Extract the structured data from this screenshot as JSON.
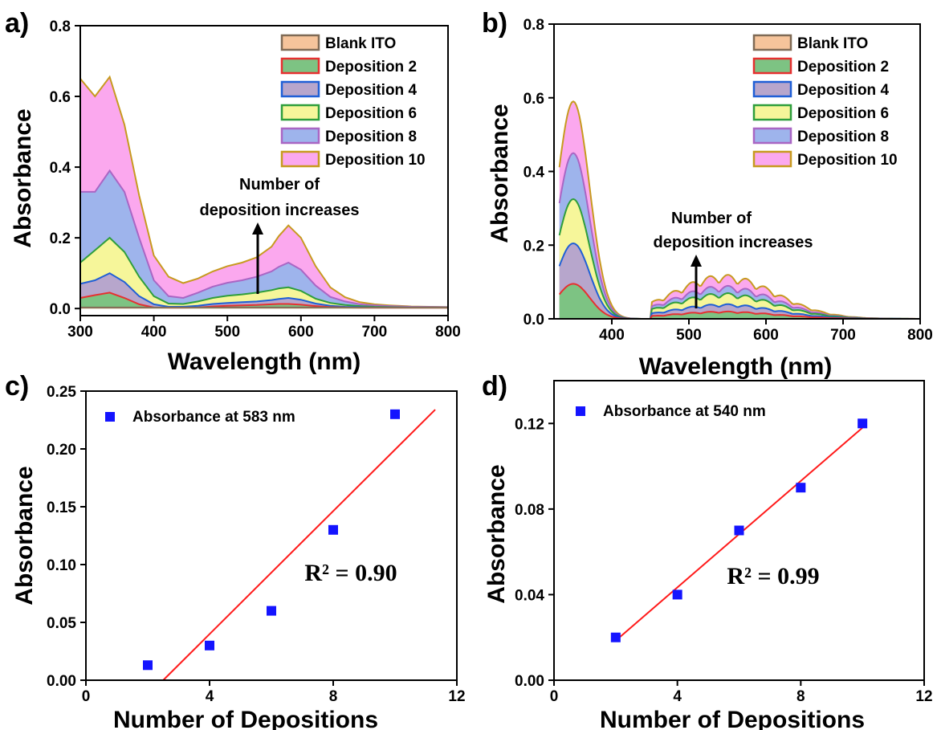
{
  "panels": [
    {
      "letter": "a)"
    },
    {
      "letter": "b)"
    },
    {
      "letter": "c)"
    },
    {
      "letter": "d)"
    }
  ],
  "colors": {
    "blank_fill": "#f6c49b",
    "blank_line": "#7f6a55",
    "dep2_fill": "#7dc383",
    "dep2_line": "#e63030",
    "dep4_fill": "#b7a6cc",
    "dep4_line": "#1f5fd6",
    "dep6_fill": "#f6f69a",
    "dep6_line": "#2e9e3c",
    "dep8_fill": "#9eb4ec",
    "dep8_line": "#a966c4",
    "dep10_fill": "#fba8ee",
    "dep10_line": "#c79a1f",
    "scatter": "#1414ff",
    "fit": "#ff1a1a"
  },
  "chart_data": [
    {
      "panel": "a)",
      "type": "area",
      "xlabel": "Wavelength (nm)",
      "ylabel": "Absorbance",
      "xlim": [
        300,
        800
      ],
      "ylim": [
        -0.02,
        0.8
      ],
      "xticks": [
        300,
        400,
        500,
        600,
        700,
        800
      ],
      "yticks": [
        0.0,
        0.2,
        0.4,
        0.6,
        0.8
      ],
      "ytick_labels": [
        "0.0",
        "0.2",
        "0.4",
        "0.6",
        "0.8"
      ],
      "legend_position": "top-right",
      "annotation": [
        "Number of",
        "deposition increases"
      ],
      "x": [
        300,
        320,
        340,
        360,
        380,
        400,
        420,
        440,
        460,
        480,
        500,
        520,
        540,
        560,
        570,
        583,
        600,
        620,
        640,
        660,
        680,
        700,
        720,
        750,
        800
      ],
      "series": [
        {
          "name": "Blank ITO",
          "values": [
            0.003,
            0.003,
            0.003,
            0.003,
            0.003,
            0.003,
            0.003,
            0.003,
            0.003,
            0.003,
            0.003,
            0.003,
            0.003,
            0.003,
            0.003,
            0.003,
            0.003,
            0.003,
            0.003,
            0.003,
            0.003,
            0.003,
            0.003,
            0.003,
            0.003
          ]
        },
        {
          "name": "Deposition 2",
          "values": [
            0.03,
            0.038,
            0.045,
            0.03,
            0.012,
            0.003,
            0.002,
            0.002,
            0.003,
            0.006,
            0.008,
            0.009,
            0.01,
            0.012,
            0.013,
            0.013,
            0.011,
            0.007,
            0.004,
            0.003,
            0.002,
            0.002,
            0.002,
            0.002,
            0.002
          ]
        },
        {
          "name": "Deposition 4",
          "values": [
            0.07,
            0.08,
            0.1,
            0.075,
            0.035,
            0.012,
            0.005,
            0.005,
            0.008,
            0.013,
            0.016,
            0.018,
            0.02,
            0.024,
            0.027,
            0.03,
            0.025,
            0.014,
            0.008,
            0.005,
            0.004,
            0.003,
            0.003,
            0.002,
            0.002
          ]
        },
        {
          "name": "Deposition 6",
          "values": [
            0.13,
            0.165,
            0.2,
            0.16,
            0.09,
            0.035,
            0.014,
            0.013,
            0.02,
            0.03,
            0.036,
            0.04,
            0.045,
            0.052,
            0.057,
            0.06,
            0.05,
            0.028,
            0.016,
            0.01,
            0.007,
            0.005,
            0.004,
            0.003,
            0.003
          ]
        },
        {
          "name": "Deposition 8",
          "values": [
            0.33,
            0.33,
            0.39,
            0.33,
            0.2,
            0.08,
            0.035,
            0.03,
            0.045,
            0.062,
            0.073,
            0.08,
            0.09,
            0.105,
            0.118,
            0.13,
            0.11,
            0.065,
            0.033,
            0.02,
            0.012,
            0.009,
            0.007,
            0.005,
            0.004
          ]
        },
        {
          "name": "Deposition 10",
          "values": [
            0.65,
            0.6,
            0.655,
            0.52,
            0.32,
            0.15,
            0.09,
            0.072,
            0.085,
            0.105,
            0.12,
            0.13,
            0.145,
            0.175,
            0.205,
            0.235,
            0.2,
            0.12,
            0.06,
            0.032,
            0.018,
            0.012,
            0.009,
            0.006,
            0.004
          ]
        }
      ]
    },
    {
      "panel": "b)",
      "type": "area",
      "xlabel": "Wavelength (nm)",
      "ylabel": "Absorbance",
      "xlim": [
        325,
        800
      ],
      "ylim": [
        0,
        0.8
      ],
      "xticks": [
        400,
        500,
        600,
        700,
        800
      ],
      "yticks": [
        0.0,
        0.2,
        0.4,
        0.6,
        0.8
      ],
      "ytick_labels": [
        "0.0",
        "0.2",
        "0.4",
        "0.6",
        "0.8"
      ],
      "legend_position": "top-right",
      "annotation": [
        "Number of",
        "deposition increases"
      ],
      "series": [
        {
          "name": "Blank ITO",
          "values": []
        },
        {
          "name": "Deposition 2",
          "peak1": 0.095,
          "peak2": 0.02
        },
        {
          "name": "Deposition 4",
          "peak1": 0.205,
          "peak2": 0.04
        },
        {
          "name": "Deposition 6",
          "peak1": 0.325,
          "peak2": 0.07
        },
        {
          "name": "Deposition 8",
          "peak1": 0.45,
          "peak2": 0.09
        },
        {
          "name": "Deposition 10",
          "peak1": 0.59,
          "peak2": 0.12
        }
      ]
    },
    {
      "panel": "c)",
      "type": "scatter",
      "xlabel": "Number of Depositions",
      "ylabel": "Absorbance",
      "xlim": [
        0,
        12
      ],
      "ylim": [
        0,
        0.25
      ],
      "xticks": [
        0,
        4,
        8,
        12
      ],
      "yticks": [
        0.0,
        0.05,
        0.1,
        0.15,
        0.2,
        0.25
      ],
      "ytick_labels": [
        "0.00",
        "0.05",
        "0.10",
        "0.15",
        "0.20",
        "0.25"
      ],
      "legend": "Absorbance at 583 nm",
      "x": [
        2,
        4,
        6,
        8,
        10
      ],
      "y": [
        0.013,
        0.03,
        0.06,
        0.13,
        0.23
      ],
      "fit_line": {
        "x": [
          2.5,
          11.3
        ],
        "y": [
          0.0,
          0.234
        ]
      },
      "r2": "R² = 0.90"
    },
    {
      "panel": "d)",
      "type": "scatter",
      "xlabel": "Number of Depositions",
      "ylabel": "Absorbance",
      "xlim": [
        0,
        12
      ],
      "ylim": [
        0,
        0.14
      ],
      "xticks": [
        0,
        4,
        8,
        12
      ],
      "yticks": [
        0.0,
        0.04,
        0.08,
        0.12
      ],
      "ytick_labels": [
        "0.00",
        "0.04",
        "0.08",
        "0.12"
      ],
      "legend": "Absorbance at 540 nm",
      "x": [
        2,
        4,
        6,
        8,
        10
      ],
      "y": [
        0.02,
        0.04,
        0.07,
        0.09,
        0.12
      ],
      "fit_line": {
        "x": [
          2,
          10
        ],
        "y": [
          0.0185,
          0.118
        ]
      },
      "r2": "R² = 0.99"
    }
  ]
}
